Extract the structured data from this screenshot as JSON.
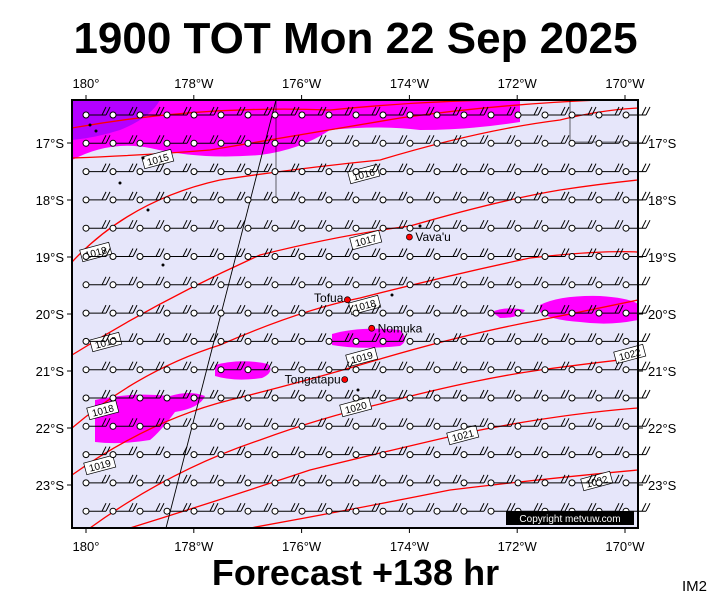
{
  "title": "1900 TOT Mon 22 Sep 2025",
  "footer": "Forecast +138 hr",
  "corner_label": "IM2",
  "copyright": "Copyright metvuw.com",
  "colors": {
    "ocean": "#e6e6fa",
    "isobar": "#ff0000",
    "rain": "#ff00ff",
    "rain_heavy": "#b400ff",
    "wind_barb": "#000000",
    "place_dot": "#ff0000"
  },
  "map": {
    "lon_range": [
      180.2,
      190.6
    ],
    "lat_range": [
      -16.2,
      -23.7
    ],
    "lon_ticks": [
      {
        "lon": 180,
        "label": "180°"
      },
      {
        "lon": 182,
        "label": "178°W"
      },
      {
        "lon": 184,
        "label": "176°W"
      },
      {
        "lon": 186,
        "label": "174°W"
      },
      {
        "lon": 188,
        "label": "172°W"
      },
      {
        "lon": 190,
        "label": "170°W"
      }
    ],
    "lat_ticks": [
      {
        "lat": -17,
        "label": "17°S"
      },
      {
        "lat": -18,
        "label": "18°S"
      },
      {
        "lat": -19,
        "label": "19°S"
      },
      {
        "lat": -20,
        "label": "20°S"
      },
      {
        "lat": -21,
        "label": "21°S"
      },
      {
        "lat": -22,
        "label": "22°S"
      },
      {
        "lat": -23,
        "label": "23°S"
      }
    ],
    "places": [
      {
        "name": "Vava'u",
        "lon": 186.0,
        "lat": -18.65
      },
      {
        "name": "Tofua",
        "lon": 184.85,
        "lat": -19.75
      },
      {
        "name": "Nomuka",
        "lon": 185.3,
        "lat": -20.25
      },
      {
        "name": "Tongatapu",
        "lon": 184.8,
        "lat": -21.15
      }
    ],
    "isobar_labels": [
      "1015",
      "1016",
      "1017",
      "1018",
      "1019",
      "1020",
      "1021",
      "1022"
    ],
    "wind_field": "moderate easterly trade winds"
  }
}
